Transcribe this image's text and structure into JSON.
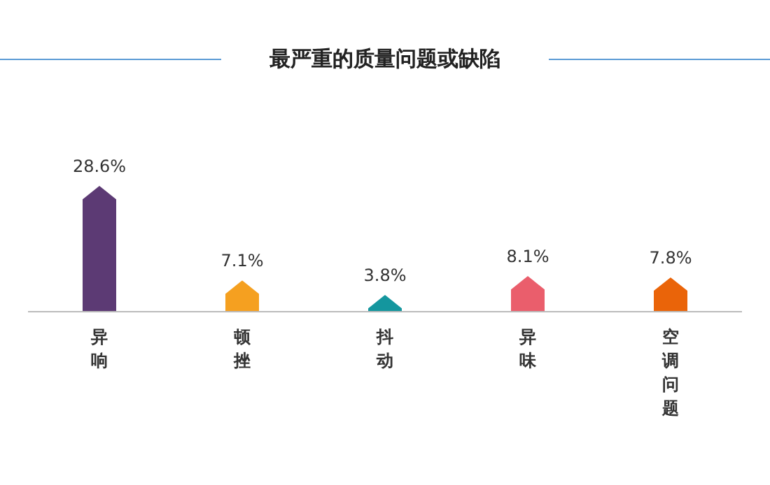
{
  "chart_data": {
    "type": "bar",
    "title": "最严重的质量问题或缺陷",
    "categories": [
      "异响",
      "顿挫",
      "抖动",
      "异味",
      "空调问题"
    ],
    "values": [
      28.6,
      7.1,
      3.8,
      8.1,
      7.8
    ],
    "value_labels": [
      "28.6%",
      "7.1%",
      "3.8%",
      "8.1%",
      "7.8%"
    ],
    "colors": [
      "#5c3a74",
      "#f5a020",
      "#14969e",
      "#ea5e6c",
      "#ea6409"
    ],
    "grid": false,
    "legend": false
  }
}
